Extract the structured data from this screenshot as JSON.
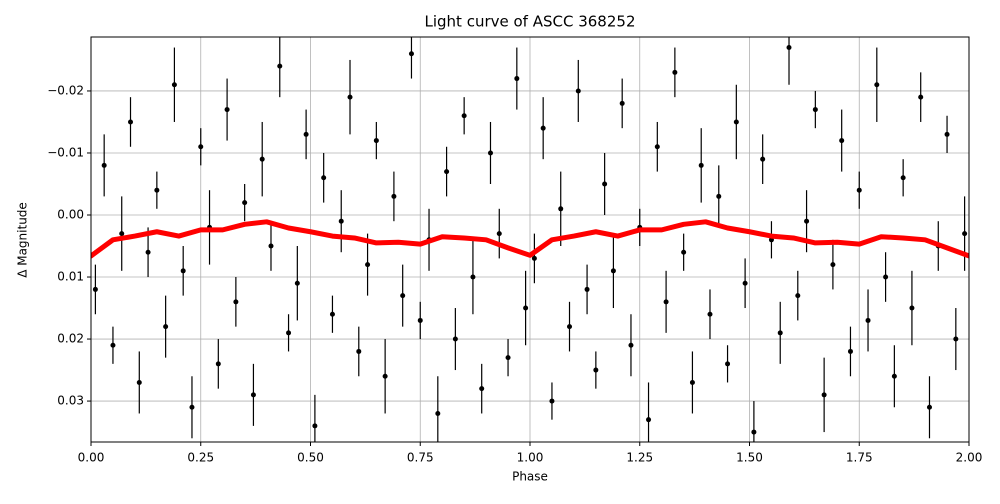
{
  "chart_data": {
    "type": "scatter",
    "title": "Light curve of ASCC 368252",
    "x_label": "Phase",
    "y_label": "Δ Magnitude",
    "xlim": [
      0,
      2
    ],
    "ylim": [
      -0.0287,
      0.0366
    ],
    "y_inverted": true,
    "grid": true,
    "xticks": [
      {
        "value": 0,
        "label": "0.00"
      },
      {
        "value": 0.25,
        "label": "0.25"
      },
      {
        "value": 0.5,
        "label": "0.50"
      },
      {
        "value": 0.75,
        "label": "0.75"
      },
      {
        "value": 1,
        "label": "1.00"
      },
      {
        "value": 1.25,
        "label": "1.25"
      },
      {
        "value": 1.5,
        "label": "1.50"
      },
      {
        "value": 1.75,
        "label": "1.75"
      },
      {
        "value": 2,
        "label": "2.00"
      }
    ],
    "yticks": [
      {
        "value": -0.02,
        "label": "−0.02"
      },
      {
        "value": -0.01,
        "label": "−0.01"
      },
      {
        "value": 0,
        "label": "0.00"
      },
      {
        "value": 0.01,
        "label": "0.01"
      },
      {
        "value": 0.02,
        "label": "0.02"
      },
      {
        "value": 0.03,
        "label": "0.03"
      }
    ],
    "series": [
      {
        "color": "#000000",
        "style": "errorbar",
        "x": [
          0.01,
          0.03,
          0.05,
          0.07,
          0.09,
          0.11,
          0.13,
          0.15,
          0.17,
          0.19,
          0.21,
          0.23,
          0.25,
          0.27,
          0.29,
          0.31,
          0.33,
          0.35,
          0.37,
          0.39,
          0.41,
          0.43,
          0.45,
          0.47,
          0.49,
          0.51,
          0.53,
          0.55,
          0.57,
          0.59,
          0.61,
          0.63,
          0.65,
          0.67,
          0.69,
          0.71,
          0.73,
          0.75,
          0.77,
          0.79,
          0.81,
          0.83,
          0.85,
          0.87,
          0.89,
          0.91,
          0.93,
          0.95,
          0.97,
          0.99,
          1.01,
          1.03,
          1.05,
          1.07,
          1.09,
          1.11,
          1.13,
          1.15,
          1.17,
          1.19,
          1.21,
          1.23,
          1.25,
          1.27,
          1.29,
          1.31,
          1.33,
          1.35,
          1.37,
          1.39,
          1.41,
          1.43,
          1.45,
          1.47,
          1.49,
          1.51,
          1.53,
          1.55,
          1.57,
          1.59,
          1.61,
          1.63,
          1.65,
          1.67,
          1.69,
          1.71,
          1.73,
          1.75,
          1.77,
          1.79,
          1.81,
          1.83,
          1.85,
          1.87,
          1.89,
          1.91,
          1.93,
          1.95,
          1.97,
          1.99
        ],
        "values": [
          0.012,
          -0.008,
          0.021,
          0.003,
          -0.015,
          0.027,
          0.006,
          -0.004,
          0.018,
          -0.021,
          0.009,
          0.031,
          -0.011,
          0.002,
          0.024,
          -0.017,
          0.014,
          -0.002,
          0.029,
          -0.009,
          0.005,
          -0.024,
          0.019,
          0.011,
          -0.013,
          0.034,
          -0.006,
          0.016,
          0.001,
          -0.019,
          0.022,
          0.008,
          -0.012,
          0.026,
          -0.003,
          0.013,
          -0.026,
          0.017,
          0.004,
          0.032,
          -0.007,
          0.02,
          -0.016,
          0.01,
          0.028,
          -0.01,
          0.003,
          0.023,
          -0.022,
          0.015,
          0.007,
          -0.014,
          0.03,
          -0.001,
          0.018,
          -0.02,
          0.012,
          0.025,
          -0.005,
          0.009,
          -0.018,
          0.021,
          0.002,
          0.033,
          -0.011,
          0.014,
          -0.023,
          0.006,
          0.027,
          -0.008,
          0.016,
          -0.003,
          0.024,
          -0.015,
          0.011,
          0.035,
          -0.009,
          0.004,
          0.019,
          -0.027,
          0.013,
          0.001,
          -0.017,
          0.029,
          0.008,
          -0.012,
          0.022,
          -0.004,
          0.017,
          -0.021,
          0.01,
          0.026,
          -0.006,
          0.015,
          -0.019,
          0.031,
          0.005,
          -0.013,
          0.02,
          0.003
        ],
        "errors": [
          0.004,
          0.005,
          0.003,
          0.006,
          0.004,
          0.005,
          0.004,
          0.003,
          0.005,
          0.006,
          0.004,
          0.005,
          0.003,
          0.006,
          0.004,
          0.005,
          0.004,
          0.003,
          0.005,
          0.006,
          0.004,
          0.005,
          0.003,
          0.006,
          0.004,
          0.005,
          0.004,
          0.003,
          0.005,
          0.006,
          0.004,
          0.005,
          0.003,
          0.006,
          0.004,
          0.005,
          0.004,
          0.003,
          0.005,
          0.006,
          0.004,
          0.005,
          0.003,
          0.006,
          0.004,
          0.005,
          0.004,
          0.003,
          0.005,
          0.006,
          0.004,
          0.005,
          0.003,
          0.006,
          0.004,
          0.005,
          0.004,
          0.003,
          0.005,
          0.006,
          0.004,
          0.005,
          0.003,
          0.006,
          0.004,
          0.005,
          0.004,
          0.003,
          0.005,
          0.006,
          0.004,
          0.005,
          0.003,
          0.006,
          0.004,
          0.005,
          0.004,
          0.003,
          0.005,
          0.006,
          0.004,
          0.005,
          0.003,
          0.006,
          0.004,
          0.005,
          0.004,
          0.003,
          0.005,
          0.006,
          0.004,
          0.005,
          0.003,
          0.006,
          0.004,
          0.005,
          0.004,
          0.003,
          0.005,
          0.006
        ]
      },
      {
        "color": "#ff0000",
        "style": "line",
        "x": [
          0,
          0.05,
          0.1,
          0.15,
          0.2,
          0.25,
          0.3,
          0.35,
          0.4,
          0.45,
          0.5,
          0.55,
          0.6,
          0.65,
          0.7,
          0.75,
          0.8,
          0.85,
          0.9,
          0.95,
          1,
          1.05,
          1.1,
          1.15,
          1.2,
          1.25,
          1.3,
          1.35,
          1.4,
          1.45,
          1.5,
          1.55,
          1.6,
          1.65,
          1.7,
          1.75,
          1.8,
          1.85,
          1.9,
          1.95,
          2
        ],
        "values": [
          0.0066,
          0.004,
          0.0034,
          0.0027,
          0.0034,
          0.0024,
          0.0024,
          0.0015,
          0.0011,
          0.0021,
          0.0027,
          0.0034,
          0.0037,
          0.0045,
          0.0044,
          0.0047,
          0.0035,
          0.0037,
          0.004,
          0.0053,
          0.0065,
          0.004,
          0.0034,
          0.0027,
          0.0034,
          0.0024,
          0.0024,
          0.0015,
          0.0011,
          0.0021,
          0.0027,
          0.0034,
          0.0037,
          0.0045,
          0.0044,
          0.0047,
          0.0035,
          0.0037,
          0.004,
          0.0053,
          0.0066
        ]
      }
    ]
  }
}
